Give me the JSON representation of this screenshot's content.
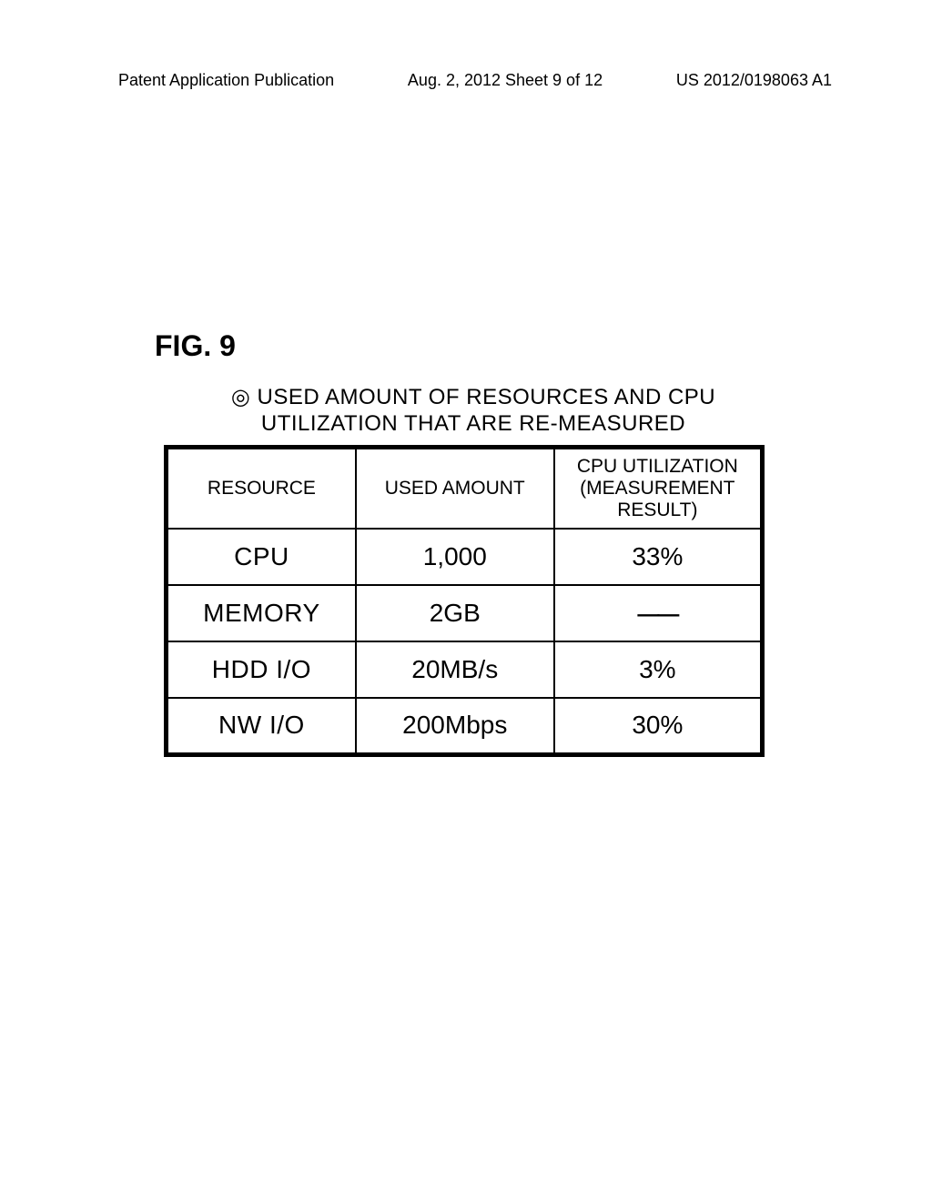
{
  "header": {
    "left": "Patent Application Publication",
    "center": "Aug. 2, 2012  Sheet 9 of 12",
    "right": "US 2012/0198063 A1"
  },
  "figure": {
    "label": "FIG. 9",
    "caption_line1": "◎ USED AMOUNT OF RESOURCES AND CPU",
    "caption_line2": "UTILIZATION THAT ARE RE-MEASURED"
  },
  "table": {
    "columns": [
      "RESOURCE",
      "USED AMOUNT",
      "CPU UTILIZATION\n(MEASUREMENT\nRESULT)"
    ],
    "rows": [
      {
        "resource": "CPU",
        "used_amount": "1,000",
        "cpu_util": "33%"
      },
      {
        "resource": "MEMORY",
        "used_amount": "2GB",
        "cpu_util": "——"
      },
      {
        "resource": "HDD I/O",
        "used_amount": "20MB/s",
        "cpu_util": "3%"
      },
      {
        "resource": "NW I/O",
        "used_amount": "200Mbps",
        "cpu_util": "30%"
      }
    ]
  },
  "styling": {
    "background_color": "#ffffff",
    "text_color": "#000000",
    "border_color": "#000000",
    "outer_border_width": 5,
    "inner_border_width": 2
  }
}
